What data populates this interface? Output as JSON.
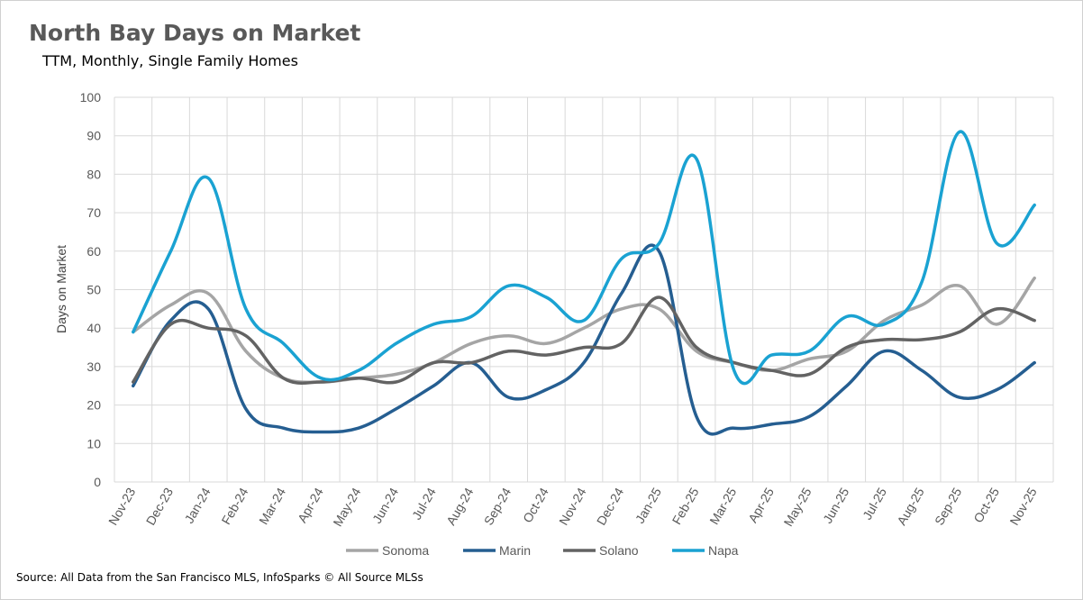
{
  "header": {
    "title": "North Bay Days on Market",
    "subtitle": "TTM, Monthly, Single Family Homes"
  },
  "footer": {
    "source": "Source: All Data from the San Francisco MLS, InfoSparks © All Source MLSs"
  },
  "chart_data": {
    "type": "line",
    "title": "North Bay Days on Market",
    "subtitle": "TTM, Monthly, Single Family Homes",
    "xlabel": "",
    "ylabel": "Days on Market",
    "ylim": [
      0,
      100
    ],
    "yticks": [
      0,
      10,
      20,
      30,
      40,
      50,
      60,
      70,
      80,
      90,
      100
    ],
    "grid": true,
    "legend_position": "bottom",
    "categories": [
      "Nov-23",
      "Dec-23",
      "Jan-24",
      "Feb-24",
      "Mar-24",
      "Apr-24",
      "May-24",
      "Jun-24",
      "Jul-24",
      "Aug-24",
      "Sep-24",
      "Oct-24",
      "Nov-24",
      "Dec-24",
      "Jan-25",
      "Feb-25",
      "Mar-25",
      "Apr-25",
      "May-25",
      "Jun-25",
      "Jul-25",
      "Aug-25",
      "Sep-25",
      "Oct-25",
      "Nov-25"
    ],
    "series": [
      {
        "name": "Sonoma",
        "color": "#a5a5a5",
        "values": [
          39,
          46,
          49,
          34,
          27,
          26,
          27,
          28,
          31,
          36,
          38,
          36,
          40,
          45,
          45,
          34,
          31,
          29,
          32,
          34,
          42,
          46,
          51,
          41,
          53
        ]
      },
      {
        "name": "Marin",
        "color": "#255e91",
        "values": [
          25,
          42,
          45,
          19,
          14,
          13,
          14,
          19,
          25,
          31,
          22,
          24,
          31,
          49,
          60,
          17,
          14,
          15,
          17,
          25,
          34,
          29,
          22,
          24,
          31
        ]
      },
      {
        "name": "Solano",
        "color": "#636363",
        "values": [
          26,
          41,
          40,
          38,
          27,
          26,
          27,
          26,
          31,
          31,
          34,
          33,
          35,
          36,
          48,
          35,
          31,
          29,
          28,
          35,
          37,
          37,
          39,
          45,
          42
        ]
      },
      {
        "name": "Napa",
        "color": "#1aa2d2",
        "values": [
          39,
          60,
          79,
          45,
          36,
          27,
          29,
          36,
          41,
          43,
          51,
          48,
          42,
          58,
          62,
          84,
          29,
          33,
          34,
          43,
          41,
          52,
          91,
          62,
          72
        ]
      }
    ]
  }
}
